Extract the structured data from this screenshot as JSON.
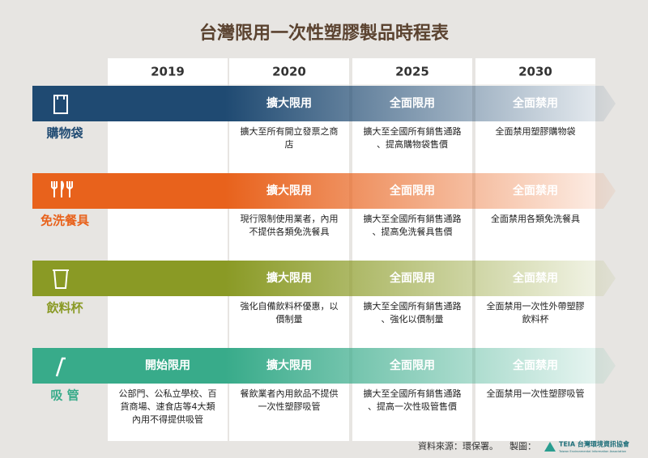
{
  "title": "台灣限用一次性塑膠製品時程表",
  "years": [
    "2019",
    "2020",
    "2025",
    "2030"
  ],
  "rows": [
    {
      "label": "購物袋",
      "color": "#1f4a72",
      "stages": [
        null,
        "擴大限用",
        "全面限用",
        "全面禁用"
      ],
      "notes": [
        null,
        [
          "擴大至所有開立發票之商",
          "店"
        ],
        [
          "擴大至全國所有銷售通路",
          "、提高購物袋售價"
        ],
        [
          "全面禁用塑膠購物袋"
        ]
      ]
    },
    {
      "label": "免洗餐具",
      "color": "#e8621c",
      "stages": [
        null,
        "擴大限用",
        "全面限用",
        "全面禁用"
      ],
      "notes": [
        null,
        [
          "現行限制使用業者，內用",
          "不提供各類免洗餐具"
        ],
        [
          "擴大至全國所有銷售通路",
          "、提高免洗餐具售價"
        ],
        [
          "全面禁用各類免洗餐具"
        ]
      ]
    },
    {
      "label": "飲料杯",
      "color": "#8a9a25",
      "stages": [
        null,
        "擴大限用",
        "全面限用",
        "全面禁用"
      ],
      "notes": [
        null,
        [
          "強化自備飲料杯優惠，以",
          "價制量"
        ],
        [
          "擴大至全國所有銷售通路",
          "、強化以價制量"
        ],
        [
          "全面禁用一次性外帶塑膠",
          "飲料杯"
        ]
      ]
    },
    {
      "label": "吸 管",
      "color": "#38ab8a",
      "stages": [
        "開始限用",
        "擴大限用",
        "全面限用",
        "全面禁用"
      ],
      "notes": [
        [
          "公部門、公私立學校、百",
          "貨商場、速食店等4大類",
          "內用不得提供吸管"
        ],
        [
          "餐飲業者內用飲品不提供",
          "一次性塑膠吸管"
        ],
        [
          "擴大至全國所有銷售通路",
          "、提高一次性吸管售價"
        ],
        [
          "全面禁用一次性塑膠吸管"
        ]
      ]
    }
  ],
  "footer": {
    "source": "資料來源：環保署。",
    "credit": "製圖：",
    "org": "TEIA 台灣環境資訊協會",
    "org_en": "Taiwan Environmental Information Association"
  }
}
